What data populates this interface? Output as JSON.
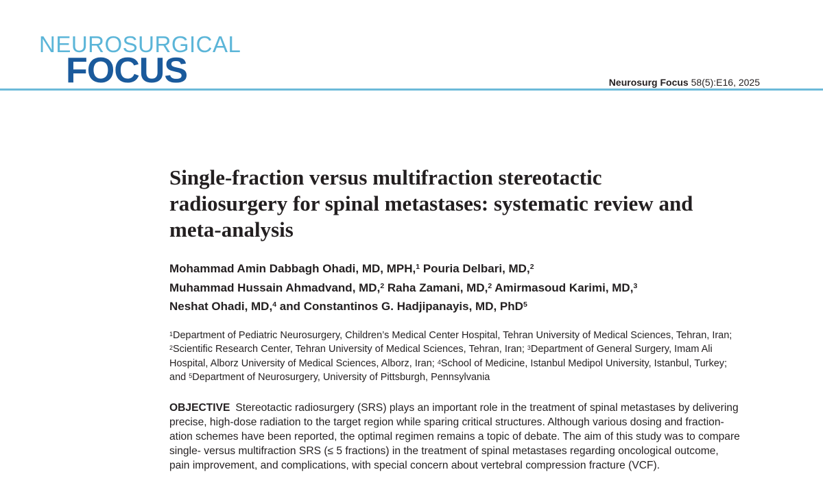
{
  "header": {
    "journal_line1": "NEUROSURGICAL",
    "journal_line2": "FOCUS",
    "citation_journal": "Neurosurg Focus",
    "citation_ref": "58(5):E16, 2025"
  },
  "title": {
    "lines": [
      "Single-fraction versus multifraction stereotactic",
      "radiosurgery for spinal metastases: systematic review and",
      "meta-analysis"
    ]
  },
  "authors": {
    "lines": [
      [
        {
          "name": "Mohammad Amin Dabbagh Ohadi, MD, MPH,",
          "sup": "1"
        },
        {
          "name": "Pouria Delbari, MD,",
          "sup": "2"
        }
      ],
      [
        {
          "name": "Muhammad Hussain Ahmadvand, MD,",
          "sup": "2"
        },
        {
          "name": "Raha Zamani, MD,",
          "sup": "2"
        },
        {
          "name": "Amirmasoud Karimi, MD,",
          "sup": "3"
        }
      ],
      [
        {
          "name": "Neshat Ohadi, MD,",
          "sup": "4"
        },
        {
          "name": "and Constantinos G. Hadjipanayis, MD, PhD",
          "sup": "5"
        }
      ]
    ]
  },
  "affiliations": {
    "lines": [
      [
        {
          "sup": "1",
          "text": "Department of Pediatric Neurosurgery, Children’s Medical Center Hospital, Tehran University of Medical Sciences, Tehran, Iran;"
        }
      ],
      [
        {
          "sup": "2",
          "text": "Scientific Research Center, Tehran University of Medical Sciences, Tehran, Iran; "
        },
        {
          "sup": "3",
          "text": "Department of General Surgery, Imam Ali"
        }
      ],
      [
        {
          "text": "Hospital, Alborz University of Medical Sciences, Alborz, Iran; "
        },
        {
          "sup": "4",
          "text": "School of Medicine, Istanbul Medipol University, Istanbul, Turkey;"
        }
      ],
      [
        {
          "text": "and "
        },
        {
          "sup": "5",
          "text": "Department of Neurosurgery, University of Pittsburgh, Pennsylvania"
        }
      ]
    ]
  },
  "abstract": {
    "label": "OBJECTIVE",
    "lines": [
      "Stereotactic radiosurgery (SRS) plays an important role in the treatment of spinal metastases by delivering",
      "precise, high-dose radiation to the target region while sparing critical structures. Although various dosing and fraction-",
      "ation schemes have been reported, the optimal regimen remains a topic of debate. The aim of this study was to compare",
      "single- versus multifraction SRS (≤ 5 fractions) in the treatment of spinal metastases regarding oncological outcome,",
      "pain improvement, and complications, with special concern about vertebral compression fracture (VCF)."
    ]
  }
}
